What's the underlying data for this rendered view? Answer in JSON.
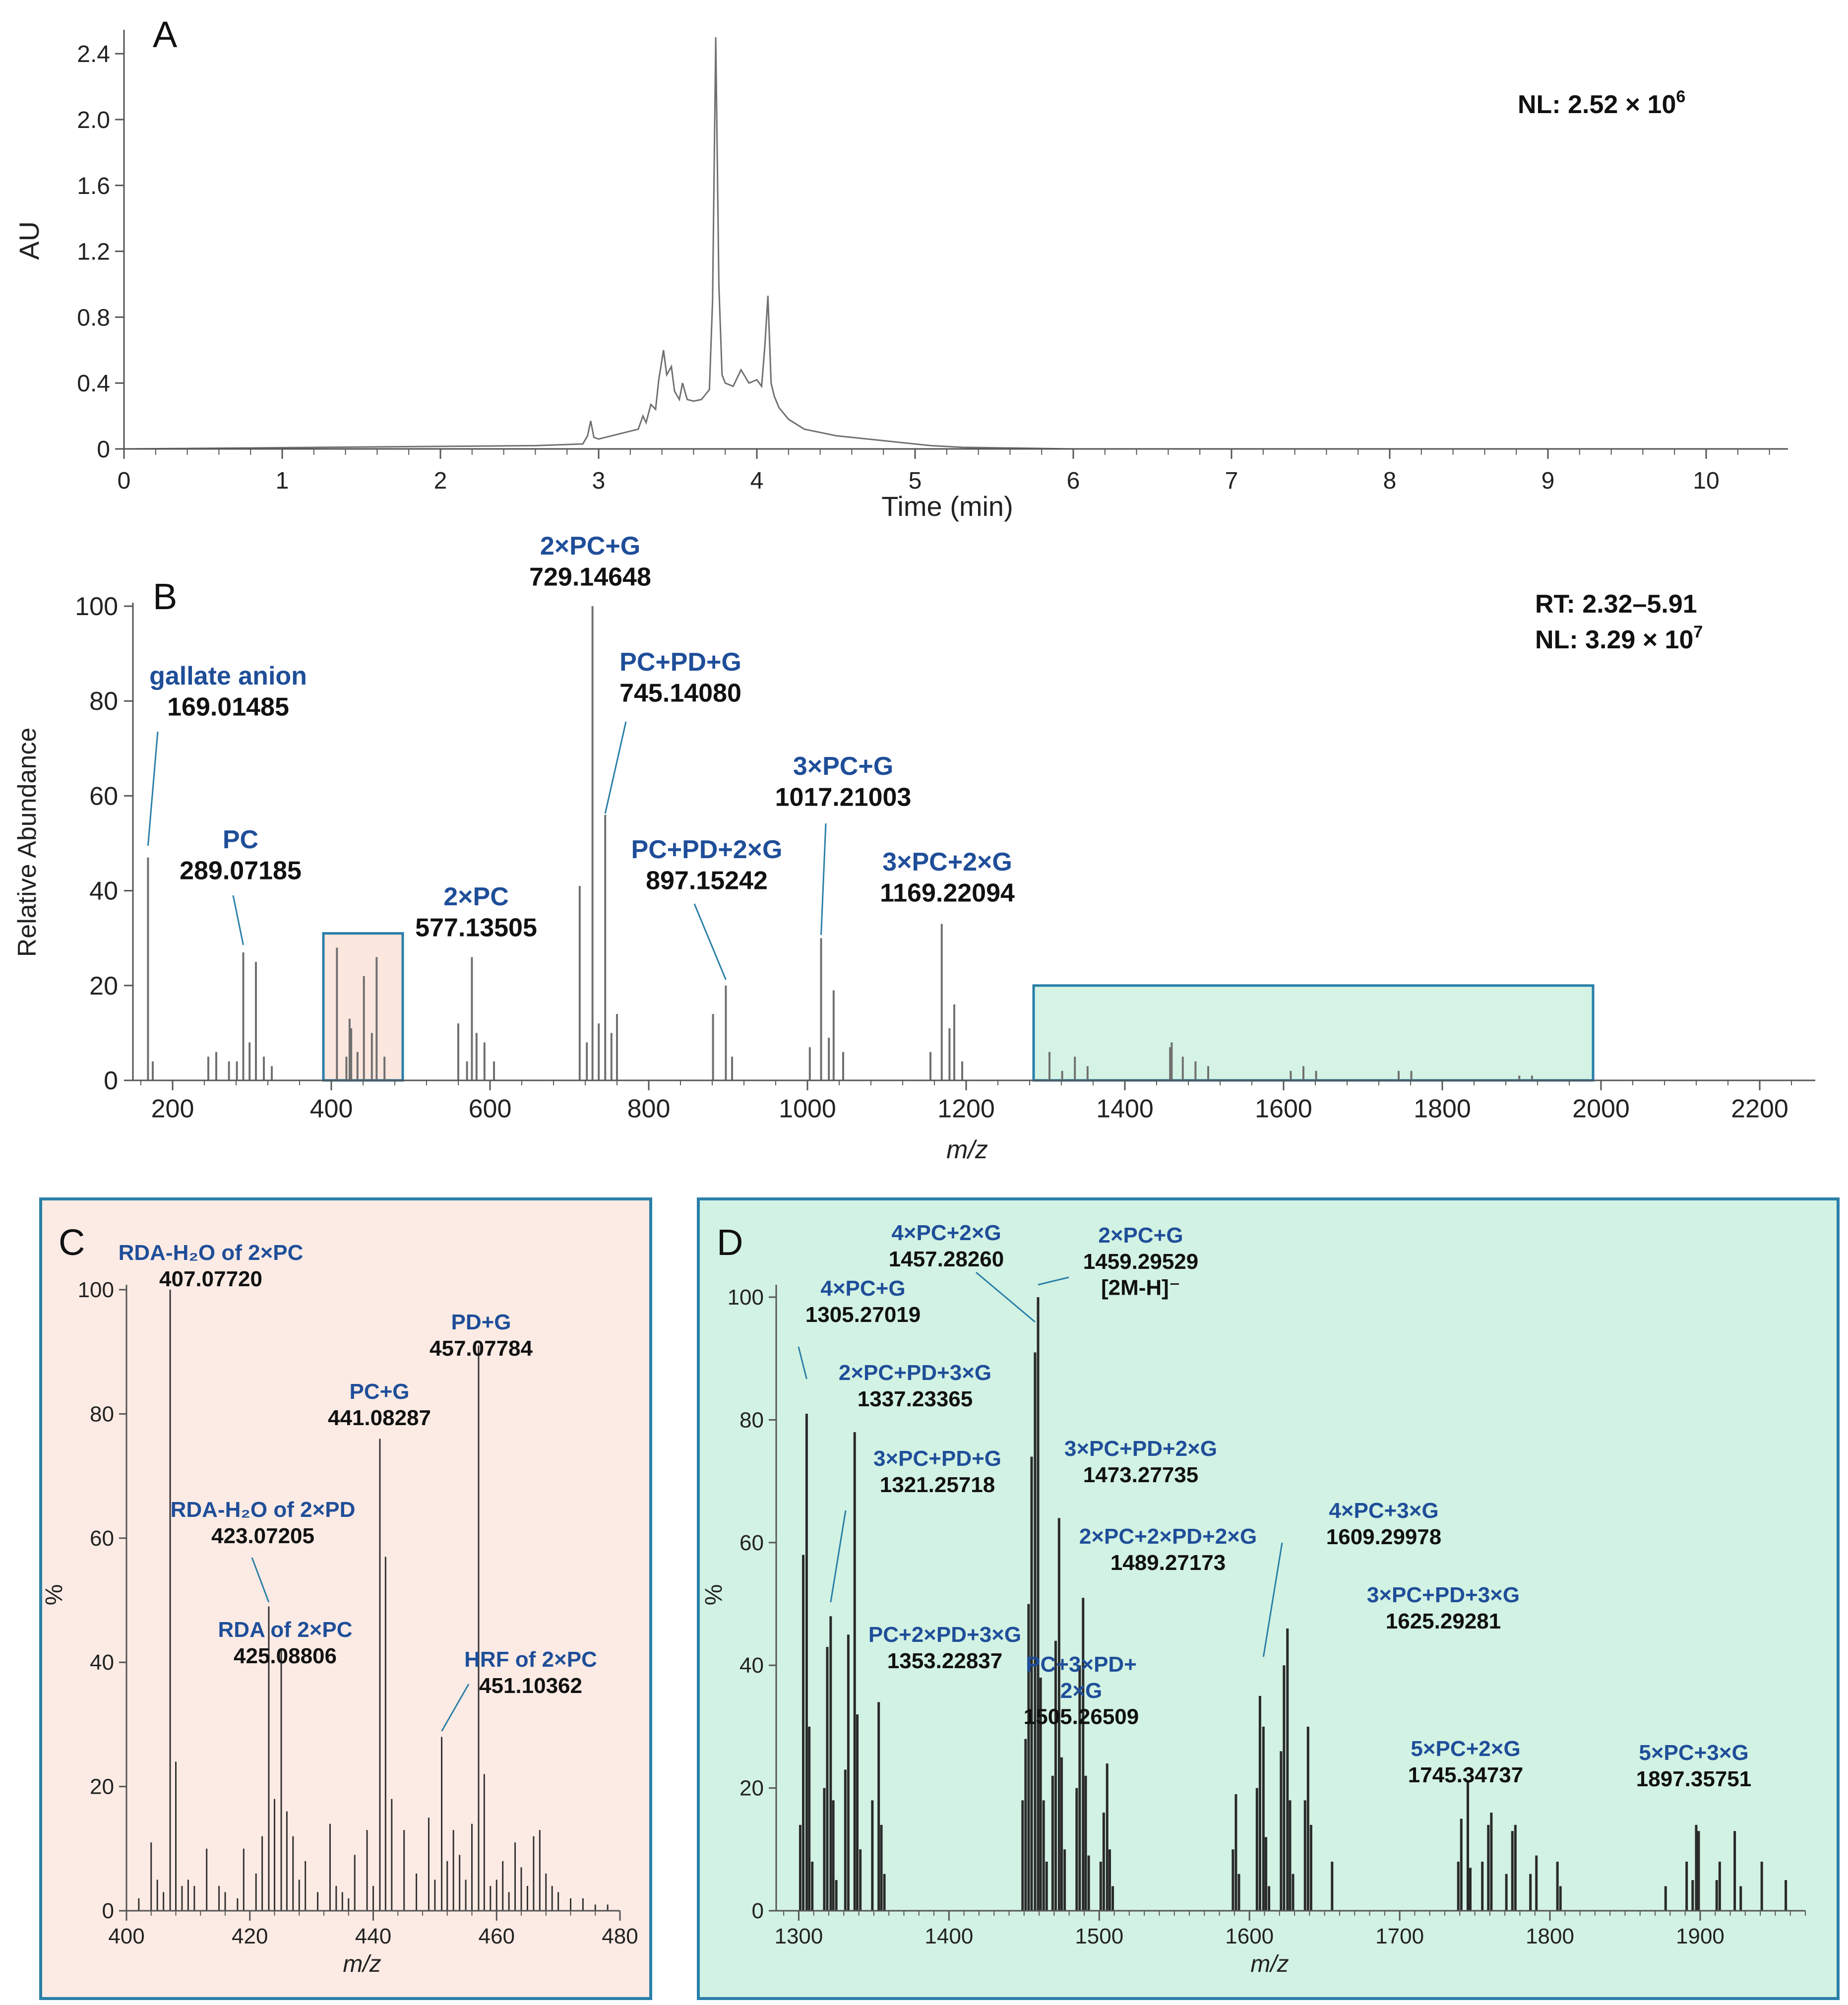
{
  "colors": {
    "axis": "#555555",
    "trace": "#707070",
    "annotation_blue": "#1f4e99",
    "value_black": "#111111",
    "box_teal": "#2a7fa8",
    "panel_c_fill": "#fcebe4",
    "panel_d_fill": "#d2f2e3"
  },
  "chart_data": [
    {
      "id": "A",
      "type": "line",
      "panel_label": "A",
      "xlabel": "Time (min)",
      "ylabel": "AU",
      "xlim": [
        0,
        10.5
      ],
      "ylim": [
        0,
        2.5
      ],
      "xticks": [
        0,
        1,
        2,
        3,
        4,
        5,
        6,
        7,
        8,
        9,
        10
      ],
      "yticks": [
        0,
        0.4,
        0.8,
        1.2,
        1.6,
        2.0,
        2.4
      ],
      "ytick_labels": [
        "0",
        "0.4",
        "0.8",
        "1.2",
        "1.6",
        "2.0",
        "2.4"
      ],
      "note": "NL: 2.52 × 10",
      "note_exp": "6",
      "series": [
        {
          "name": "chromatogram",
          "x": [
            0,
            2.6,
            2.9,
            2.93,
            2.95,
            2.97,
            3.0,
            3.25,
            3.28,
            3.3,
            3.33,
            3.36,
            3.38,
            3.41,
            3.43,
            3.46,
            3.48,
            3.51,
            3.53,
            3.56,
            3.6,
            3.65,
            3.7,
            3.72,
            3.74,
            3.76,
            3.78,
            3.8,
            3.85,
            3.9,
            3.95,
            4.0,
            4.03,
            4.05,
            4.07,
            4.09,
            4.11,
            4.14,
            4.2,
            4.3,
            4.5,
            4.8,
            5.1,
            5.3,
            6.0,
            10.5
          ],
          "y": [
            0,
            0.02,
            0.03,
            0.08,
            0.17,
            0.07,
            0.06,
            0.12,
            0.2,
            0.16,
            0.27,
            0.24,
            0.42,
            0.6,
            0.45,
            0.5,
            0.35,
            0.3,
            0.4,
            0.3,
            0.29,
            0.3,
            0.36,
            0.9,
            2.5,
            1.0,
            0.45,
            0.4,
            0.38,
            0.48,
            0.4,
            0.42,
            0.38,
            0.62,
            0.93,
            0.4,
            0.32,
            0.25,
            0.18,
            0.12,
            0.08,
            0.05,
            0.02,
            0.01,
            0,
            0
          ]
        }
      ]
    },
    {
      "id": "B",
      "type": "bar",
      "panel_label": "B",
      "xlabel": "m/z",
      "ylabel": "Relative Abundance",
      "xlim": [
        150,
        2270
      ],
      "ylim": [
        0,
        100
      ],
      "xticks": [
        200,
        400,
        600,
        800,
        1000,
        1200,
        1400,
        1600,
        1800,
        2000,
        2200
      ],
      "yticks": [
        0,
        20,
        40,
        60,
        80,
        100
      ],
      "note_lines": [
        "RT: 2.32–5.91",
        "NL: 3.29 × 10"
      ],
      "note_exp": "7",
      "peaks": {
        "mz": [
          169.01,
          175,
          245,
          255,
          271,
          281,
          289.07,
          297,
          305,
          315,
          325,
          407.08,
          419,
          423.07,
          425.09,
          433,
          441.08,
          451.1,
          457.08,
          467,
          560,
          571,
          577.14,
          583,
          593,
          605,
          713,
          722,
          729.15,
          737,
          745.14,
          753,
          760,
          881,
          897.15,
          905,
          1003,
          1017.21,
          1027,
          1033,
          1045,
          1155,
          1169.22,
          1179,
          1185,
          1195,
          1305,
          1321,
          1337,
          1353,
          1457,
          1459,
          1473,
          1489,
          1505,
          1609,
          1625,
          1641,
          1745,
          1761,
          1897,
          1913
        ],
        "intensity": [
          47,
          4,
          5,
          6,
          4,
          4,
          27,
          8,
          25,
          5,
          3,
          28,
          5,
          13,
          11,
          6,
          22,
          10,
          26,
          5,
          12,
          4,
          26,
          10,
          8,
          4,
          41,
          8,
          100,
          12,
          56,
          10,
          14,
          14,
          20,
          5,
          7,
          30,
          9,
          19,
          6,
          6,
          33,
          11,
          16,
          4,
          6,
          2,
          5,
          3,
          7,
          8,
          5,
          4,
          3,
          2,
          3,
          2,
          2,
          2,
          1,
          1
        ]
      },
      "labels": [
        {
          "name": "gallate anion",
          "value": "169.01485",
          "mz": 169.01
        },
        {
          "name": "PC",
          "value": "289.07185",
          "mz": 289.07
        },
        {
          "name": "2×PC",
          "value": "577.13505",
          "mz": 577.14
        },
        {
          "name": "2×PC+G",
          "value": "729.14648",
          "mz": 729.15
        },
        {
          "name": "PC+PD+G",
          "value": "745.14080",
          "mz": 745.14
        },
        {
          "name": "PC+PD+2×G",
          "value": "897.15242",
          "mz": 897.15
        },
        {
          "name": "3×PC+G",
          "value": "1017.21003",
          "mz": 1017.21
        },
        {
          "name": "3×PC+2×G",
          "value": "1169.22094",
          "mz": 1169.22
        }
      ],
      "highlight_ranges": [
        {
          "panel": "C",
          "mz_from": 390,
          "mz_to": 490,
          "ymax": 31
        },
        {
          "panel": "D",
          "mz_from": 1285,
          "mz_to": 1990,
          "ymax": 20
        }
      ]
    },
    {
      "id": "C",
      "type": "bar",
      "panel_label": "C",
      "xlabel": "m/z",
      "ylabel": "%",
      "xlim": [
        400,
        480
      ],
      "ylim": [
        0,
        100
      ],
      "xticks": [
        400,
        420,
        440,
        460,
        480
      ],
      "yticks": [
        0,
        20,
        40,
        60,
        80,
        100
      ],
      "peaks": {
        "mz": [
          402,
          404,
          405,
          406,
          407.08,
          408,
          409,
          410,
          411,
          413,
          415,
          416,
          418,
          419,
          421,
          422,
          423.07,
          424,
          425.09,
          426,
          427,
          428,
          429,
          431,
          433,
          434,
          435,
          436,
          437,
          439,
          440,
          441.08,
          442,
          443,
          445,
          447,
          449,
          450,
          451.1,
          452,
          453,
          454,
          455,
          456,
          457.08,
          458,
          459,
          460,
          461,
          462,
          463,
          464,
          465,
          466,
          467,
          468,
          469,
          470,
          472,
          474,
          476,
          478
        ],
        "intensity": [
          2,
          11,
          5,
          3,
          100,
          24,
          4,
          5,
          4,
          10,
          4,
          3,
          2,
          10,
          6,
          12,
          49,
          18,
          42,
          16,
          12,
          5,
          8,
          3,
          14,
          4,
          3,
          2,
          9,
          13,
          4,
          76,
          57,
          18,
          13,
          6,
          15,
          5,
          28,
          8,
          13,
          9,
          5,
          14,
          91,
          22,
          4,
          5,
          8,
          3,
          11,
          7,
          4,
          12,
          13,
          6,
          4,
          3,
          2,
          2,
          1,
          1
        ]
      },
      "labels": [
        {
          "name": "RDA-H₂O of 2×PC",
          "value": "407.07720",
          "mz": 407.08
        },
        {
          "name": "RDA-H₂O of 2×PD",
          "value": "423.07205",
          "mz": 423.07
        },
        {
          "name": "RDA of 2×PC",
          "value": "425.08806",
          "mz": 425.09
        },
        {
          "name": "PC+G",
          "value": "441.08287",
          "mz": 441.08
        },
        {
          "name": "HRF of 2×PC",
          "value": "451.10362",
          "mz": 451.1
        },
        {
          "name": "PD+G",
          "value": "457.07784",
          "mz": 457.08
        }
      ]
    },
    {
      "id": "D",
      "type": "bar",
      "panel_label": "D",
      "xlabel": "m/z",
      "ylabel": "%",
      "xlim": [
        1285,
        1970
      ],
      "ylim": [
        0,
        100
      ],
      "xticks": [
        1300,
        1400,
        1500,
        1600,
        1700,
        1800,
        1900
      ],
      "yticks": [
        0,
        20,
        40,
        60,
        80,
        100
      ],
      "peaks": {
        "mz": [
          1301,
          1303,
          1305.27,
          1307,
          1309,
          1317,
          1319,
          1321.26,
          1323,
          1325,
          1331,
          1333,
          1337.23,
          1339,
          1341,
          1349,
          1353.23,
          1355,
          1357,
          1449,
          1451,
          1453,
          1455,
          1457.28,
          1459.3,
          1461,
          1463,
          1465,
          1469,
          1471,
          1473.28,
          1475,
          1477,
          1485,
          1487,
          1489.27,
          1491,
          1493,
          1501,
          1503,
          1505.27,
          1507,
          1509,
          1589,
          1591,
          1593,
          1605,
          1607,
          1609.3,
          1611,
          1613,
          1621,
          1623,
          1625.29,
          1627,
          1629,
          1637,
          1639,
          1641,
          1655,
          1739,
          1741,
          1745.35,
          1747,
          1755,
          1759,
          1761,
          1771,
          1775,
          1777,
          1787,
          1791,
          1805,
          1807,
          1877,
          1891,
          1895,
          1897.36,
          1899,
          1911,
          1913,
          1923,
          1927,
          1941,
          1957
        ],
        "intensity": [
          14,
          58,
          81,
          30,
          8,
          20,
          43,
          48,
          18,
          5,
          23,
          45,
          78,
          32,
          10,
          18,
          34,
          14,
          6,
          18,
          28,
          50,
          74,
          91,
          100,
          38,
          18,
          8,
          22,
          44,
          64,
          25,
          10,
          20,
          40,
          51,
          22,
          9,
          8,
          16,
          24,
          10,
          4,
          10,
          19,
          6,
          20,
          35,
          30,
          12,
          4,
          26,
          40,
          46,
          18,
          6,
          18,
          30,
          14,
          8,
          8,
          15,
          21,
          7,
          8,
          14,
          16,
          6,
          13,
          14,
          6,
          9,
          8,
          4,
          4,
          8,
          5,
          14,
          13,
          5,
          8,
          13,
          4,
          8,
          5
        ]
      },
      "labels": [
        {
          "name": "4×PC+G",
          "value": "1305.27019",
          "mz": 1305.27
        },
        {
          "name": "2×PC+PD+3×G",
          "value": "1337.23365",
          "mz": 1337.23
        },
        {
          "name": "3×PC+PD+G",
          "value": "1321.25718",
          "mz": 1321.26
        },
        {
          "name": "PC+2×PD+3×G",
          "value": "1353.22837",
          "mz": 1353.23
        },
        {
          "name": "4×PC+2×G",
          "value": "1457.28260",
          "mz": 1457.28
        },
        {
          "name": "2×PC+G",
          "value": "1459.29529",
          "extra": "[2M-H]⁻",
          "mz": 1459.3
        },
        {
          "name": "3×PC+PD+2×G",
          "value": "1473.27735",
          "mz": 1473.28
        },
        {
          "name": "2×PC+2×PD+2×G",
          "value": "1489.27173",
          "mz": 1489.27
        },
        {
          "name": "PC+3×PD+",
          "name2": "2×G",
          "value": "1505.26509",
          "mz": 1505.27
        },
        {
          "name": "4×PC+3×G",
          "value": "1609.29978",
          "mz": 1609.3
        },
        {
          "name": "3×PC+PD+3×G",
          "value": "1625.29281",
          "mz": 1625.29
        },
        {
          "name": "5×PC+2×G",
          "value": "1745.34737",
          "mz": 1745.35
        },
        {
          "name": "5×PC+3×G",
          "value": "1897.35751",
          "mz": 1897.36
        }
      ]
    }
  ]
}
